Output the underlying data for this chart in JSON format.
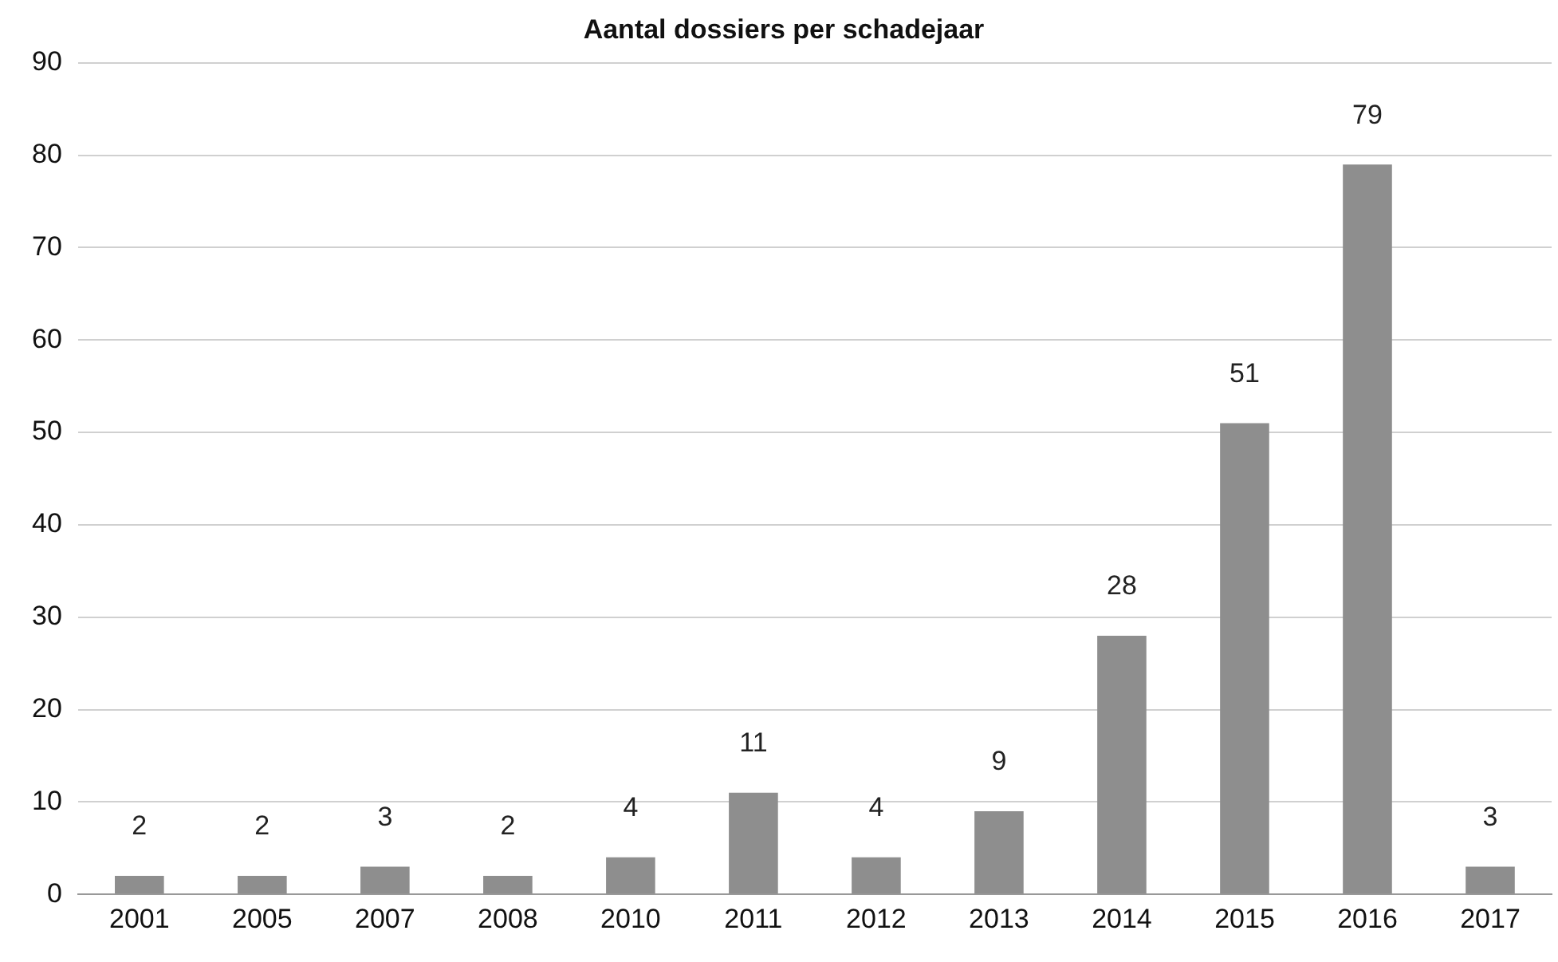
{
  "chart_data": {
    "type": "bar",
    "title": "Aantal dossiers per schadejaar",
    "categories": [
      "2001",
      "2005",
      "2007",
      "2008",
      "2010",
      "2011",
      "2012",
      "2013",
      "2014",
      "2015",
      "2016",
      "2017"
    ],
    "values": [
      2,
      2,
      3,
      2,
      4,
      11,
      4,
      9,
      28,
      51,
      79,
      3
    ],
    "color": "#8e8e8e",
    "ylim": [
      0,
      90
    ],
    "yticks": [
      0,
      10,
      20,
      30,
      40,
      50,
      60,
      70,
      80,
      90
    ],
    "grid": "y",
    "data_labels": true
  }
}
